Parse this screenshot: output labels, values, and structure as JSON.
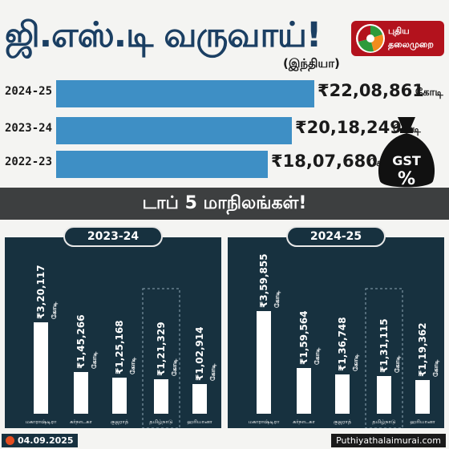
{
  "header": {
    "title": "ஜி.எஸ்.டி வருவாய்!",
    "subtitle": "(இந்தியா)",
    "logo_line1": "புதிய",
    "logo_line2": "தலைமுறை"
  },
  "colors": {
    "title": "#1b3f63",
    "year_bar": "#3e8fc5",
    "panel": "#17313f",
    "state_bar": "#ffffff",
    "banner": "#3d3f40",
    "logo_red": "#b3121d",
    "logo_green": "#2e9a3b",
    "logo_orange": "#f28c1e"
  },
  "icons": [
    "gst-money-bag-icon",
    "puthiya-thalaimurai-logo"
  ],
  "bag_text": {
    "line1": "GST",
    "line2": "%"
  },
  "chart_data": [
    {
      "type": "bar",
      "orientation": "horizontal",
      "categories": [
        "2024-25",
        "2023-24",
        "2022-23"
      ],
      "values": [
        2208861,
        2018249,
        1807680
      ],
      "value_labels": [
        "₹22,08,861",
        "₹20,18,249",
        "₹18,07,680"
      ],
      "unit": "கோடி"
    },
    {
      "type": "bar",
      "title": "2023-24",
      "categories": [
        "மகாராஷ்டிரா",
        "கர்நாடகா",
        "குஜராத்",
        "தமிழ்நாடு",
        "ஹரியானா"
      ],
      "values": [
        320117,
        145266,
        125168,
        121329,
        102914
      ],
      "value_labels": [
        "₹3,20,117",
        "₹1,45,266",
        "₹1,25,168",
        "₹1,21,329",
        "₹1,02,914"
      ],
      "unit": "கோடி",
      "highlight": "தமிழ்நாடு"
    },
    {
      "type": "bar",
      "title": "2024-25",
      "categories": [
        "மகாராஷ்டிரா",
        "கர்நாடகா",
        "குஜராத்",
        "தமிழ்நாடு",
        "ஹரியானா"
      ],
      "values": [
        359855,
        159564,
        136748,
        131115,
        119362
      ],
      "value_labels": [
        "₹3,59,855",
        "₹1,59,564",
        "₹1,36,748",
        "₹1,31,115",
        "₹1,19,362"
      ],
      "unit": "கோடி",
      "highlight": "தமிழ்நாடு"
    }
  ],
  "banner": {
    "text": "டாப் 5 மாநிலங்கள்!"
  },
  "footer": {
    "date": "04.09.2025",
    "site": "Puthiyathalaimurai.com"
  }
}
